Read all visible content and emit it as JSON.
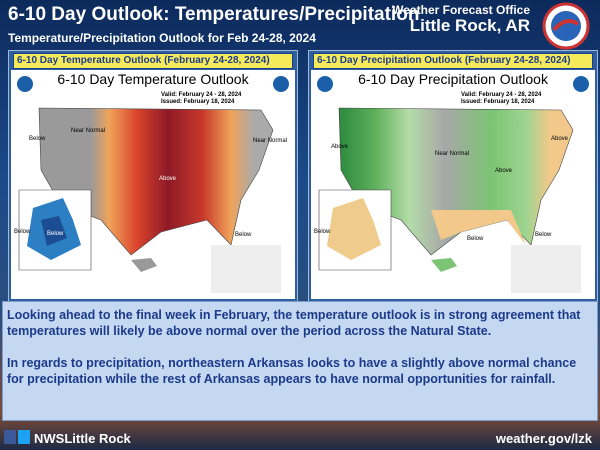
{
  "header": {
    "title": "6-10 Day Outlook: Temperatures/Precipitation",
    "office": "Weather Forecast Office",
    "location": "Little Rock, AR",
    "subtitle": "Temperature/Precipitation Outlook for Feb 24-28, 2024"
  },
  "panels": [
    {
      "caption": "6-10 Day Temperature Outlook (February 24-28, 2024)",
      "map_title": "6-10 Day Temperature Outlook",
      "valid": "Valid: February 24 - 28, 2024",
      "issued": "Issued: February 18, 2024",
      "labels": [
        "Below",
        "Near Normal",
        "Above",
        "Near Normal",
        "Below",
        "Below",
        "Below"
      ]
    },
    {
      "caption": "6-10 Day Precipitation Outlook (February 24-28, 2024)",
      "map_title": "6-10 Day Precipitation Outlook",
      "valid": "Valid: February 24 - 28, 2024",
      "issued": "Issued: February 18, 2024",
      "labels": [
        "Above",
        "Near Normal",
        "Above",
        "Below",
        "Above",
        "Below",
        "Below"
      ]
    }
  ],
  "body": [
    "Looking ahead to the final week in February, the temperature outlook is in strong agreement that temperatures will likely be above normal over the period across the Natural State.",
    "In regards to precipitation, northeastern Arkansas looks to have a slightly above normal chance for precipitation while the rest of Arkansas appears to have normal opportunities for rainfall."
  ],
  "footer": {
    "handle": "NWSLittle Rock",
    "url": "weather.gov/lzk"
  }
}
